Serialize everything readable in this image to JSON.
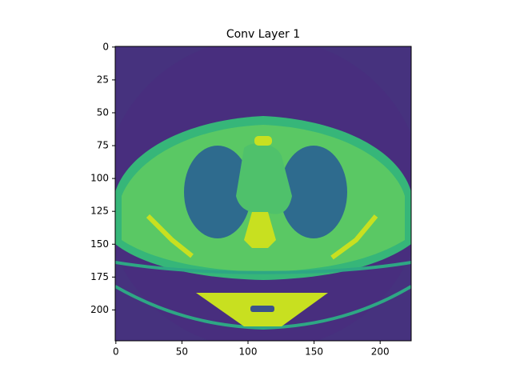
{
  "chart_data": {
    "type": "image",
    "title": "Conv Layer 1",
    "xlim": [
      -0.5,
      223.5
    ],
    "ylim": [
      223.5,
      -0.5
    ],
    "xticks": [
      0,
      50,
      100,
      150,
      200
    ],
    "yticks": [
      0,
      25,
      50,
      75,
      100,
      125,
      150,
      175,
      200
    ]
  }
}
